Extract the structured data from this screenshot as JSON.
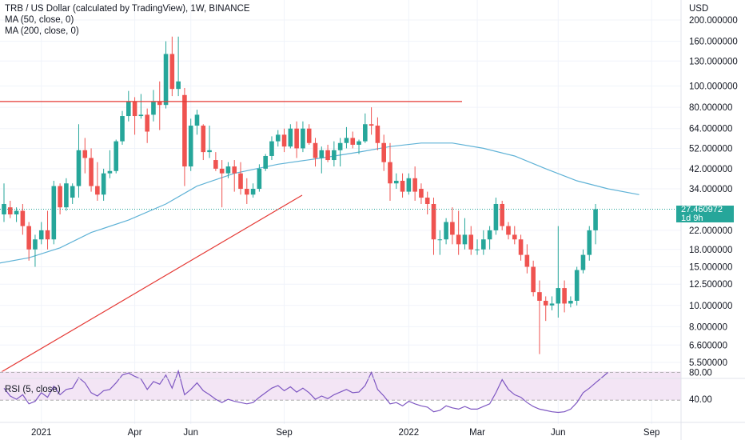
{
  "header": {
    "title": "TRB / US Dollar (calculated by TradingView), 1W, BINANCE",
    "ma50_label": "MA (50, close, 0)",
    "ma200_label": "MA (200, close, 0)",
    "rsi_label": "RSI (5, close)"
  },
  "badge": {
    "price": "27.460972",
    "countdown": "1d 9h"
  },
  "colors": {
    "up": "#26a69a",
    "down": "#ef5350",
    "ma50": "#5fb2d6",
    "trendline": "#e53935",
    "rsi_line": "#7e57c2",
    "rsi_band": "#f3e5f5"
  },
  "chart_data": {
    "type": "candlestick",
    "scale": "log",
    "currency_label": "USD",
    "price_ticks": [
      "200.000000",
      "160.000000",
      "130.000000",
      "100.000000",
      "80.000000",
      "64.000000",
      "52.000000",
      "42.000000",
      "34.000000",
      "22.000000",
      "18.000000",
      "15.000000",
      "12.500000",
      "10.000000",
      "8.000000",
      "6.600000",
      "5.500000"
    ],
    "rsi_ticks": [
      "80.00",
      "40.00"
    ],
    "time_ticks": [
      "2021",
      "Apr",
      "Jun",
      "Sep",
      "2022",
      "Mar",
      "Jun",
      "Sep"
    ],
    "last_price": 27.460972,
    "horizontal_level": 85,
    "candles": [
      {
        "o": 26,
        "h": 36,
        "l": 24,
        "c": 29
      },
      {
        "o": 28,
        "h": 30,
        "l": 25,
        "c": 26
      },
      {
        "o": 26,
        "h": 28,
        "l": 24,
        "c": 27
      },
      {
        "o": 27,
        "h": 29,
        "l": 21,
        "c": 23
      },
      {
        "o": 23,
        "h": 24,
        "l": 16,
        "c": 18
      },
      {
        "o": 18,
        "h": 21,
        "l": 15,
        "c": 20
      },
      {
        "o": 20,
        "h": 24,
        "l": 19,
        "c": 22
      },
      {
        "o": 22,
        "h": 27,
        "l": 18,
        "c": 20
      },
      {
        "o": 20,
        "h": 37,
        "l": 19,
        "c": 35
      },
      {
        "o": 35,
        "h": 36,
        "l": 26,
        "c": 28
      },
      {
        "o": 28,
        "h": 38,
        "l": 27,
        "c": 36
      },
      {
        "o": 31,
        "h": 36,
        "l": 29,
        "c": 35
      },
      {
        "o": 35,
        "h": 67,
        "l": 31,
        "c": 51
      },
      {
        "o": 51,
        "h": 58,
        "l": 40,
        "c": 47
      },
      {
        "o": 47,
        "h": 52,
        "l": 33,
        "c": 35
      },
      {
        "o": 35,
        "h": 45,
        "l": 30,
        "c": 32
      },
      {
        "o": 32,
        "h": 42,
        "l": 30,
        "c": 40
      },
      {
        "o": 40,
        "h": 51,
        "l": 38,
        "c": 41
      },
      {
        "o": 41,
        "h": 57,
        "l": 40,
        "c": 56
      },
      {
        "o": 56,
        "h": 77,
        "l": 54,
        "c": 73
      },
      {
        "o": 73,
        "h": 95,
        "l": 69,
        "c": 85
      },
      {
        "o": 85,
        "h": 89,
        "l": 60,
        "c": 73
      },
      {
        "o": 73,
        "h": 92,
        "l": 71,
        "c": 74
      },
      {
        "o": 74,
        "h": 79,
        "l": 55,
        "c": 62
      },
      {
        "o": 74,
        "h": 96,
        "l": 69,
        "c": 85
      },
      {
        "o": 85,
        "h": 105,
        "l": 63,
        "c": 82
      },
      {
        "o": 82,
        "h": 160,
        "l": 79,
        "c": 140
      },
      {
        "o": 140,
        "h": 168,
        "l": 90,
        "c": 97
      },
      {
        "o": 97,
        "h": 168,
        "l": 90,
        "c": 105
      },
      {
        "o": 91,
        "h": 98,
        "l": 35,
        "c": 43
      },
      {
        "o": 43,
        "h": 71,
        "l": 41,
        "c": 66
      },
      {
        "o": 66,
        "h": 78,
        "l": 60,
        "c": 74
      },
      {
        "o": 66,
        "h": 67,
        "l": 46,
        "c": 50
      },
      {
        "o": 50,
        "h": 66,
        "l": 47,
        "c": 51
      },
      {
        "o": 46,
        "h": 50,
        "l": 41,
        "c": 42
      },
      {
        "o": 42,
        "h": 46,
        "l": 28,
        "c": 40
      },
      {
        "o": 40,
        "h": 45,
        "l": 38,
        "c": 43
      },
      {
        "o": 43,
        "h": 46,
        "l": 33,
        "c": 40
      },
      {
        "o": 40,
        "h": 45,
        "l": 32,
        "c": 34
      },
      {
        "o": 34,
        "h": 38,
        "l": 29,
        "c": 32
      },
      {
        "o": 32,
        "h": 36,
        "l": 31,
        "c": 34
      },
      {
        "o": 34,
        "h": 44,
        "l": 33,
        "c": 42
      },
      {
        "o": 42,
        "h": 49,
        "l": 41,
        "c": 48
      },
      {
        "o": 48,
        "h": 59,
        "l": 46,
        "c": 56
      },
      {
        "o": 56,
        "h": 63,
        "l": 53,
        "c": 60
      },
      {
        "o": 60,
        "h": 64,
        "l": 50,
        "c": 53
      },
      {
        "o": 53,
        "h": 67,
        "l": 52,
        "c": 64
      },
      {
        "o": 64,
        "h": 69,
        "l": 47,
        "c": 52
      },
      {
        "o": 52,
        "h": 69,
        "l": 50,
        "c": 64
      },
      {
        "o": 64,
        "h": 67,
        "l": 54,
        "c": 55
      },
      {
        "o": 55,
        "h": 58,
        "l": 43,
        "c": 47
      },
      {
        "o": 47,
        "h": 53,
        "l": 40,
        "c": 51
      },
      {
        "o": 51,
        "h": 54,
        "l": 45,
        "c": 46
      },
      {
        "o": 46,
        "h": 56,
        "l": 43,
        "c": 51
      },
      {
        "o": 51,
        "h": 58,
        "l": 43,
        "c": 55
      },
      {
        "o": 55,
        "h": 65,
        "l": 52,
        "c": 58
      },
      {
        "o": 58,
        "h": 62,
        "l": 52,
        "c": 54
      },
      {
        "o": 54,
        "h": 57,
        "l": 49,
        "c": 56
      },
      {
        "o": 56,
        "h": 75,
        "l": 55,
        "c": 67
      },
      {
        "o": 67,
        "h": 80,
        "l": 60,
        "c": 66
      },
      {
        "o": 66,
        "h": 72,
        "l": 51,
        "c": 55
      },
      {
        "o": 55,
        "h": 60,
        "l": 41,
        "c": 45
      },
      {
        "o": 45,
        "h": 55,
        "l": 30,
        "c": 36
      },
      {
        "o": 36,
        "h": 40,
        "l": 34,
        "c": 37
      },
      {
        "o": 37,
        "h": 40,
        "l": 31,
        "c": 33
      },
      {
        "o": 33,
        "h": 40,
        "l": 32,
        "c": 38
      },
      {
        "o": 38,
        "h": 43,
        "l": 30,
        "c": 33
      },
      {
        "o": 34,
        "h": 36,
        "l": 29,
        "c": 31
      },
      {
        "o": 31,
        "h": 33,
        "l": 26,
        "c": 29
      },
      {
        "o": 29,
        "h": 31,
        "l": 17,
        "c": 20
      },
      {
        "o": 20,
        "h": 22,
        "l": 17,
        "c": 20
      },
      {
        "o": 20,
        "h": 25,
        "l": 19,
        "c": 24
      },
      {
        "o": 24,
        "h": 28,
        "l": 19,
        "c": 21
      },
      {
        "o": 21,
        "h": 27,
        "l": 17,
        "c": 19
      },
      {
        "o": 19,
        "h": 25,
        "l": 18,
        "c": 21
      },
      {
        "o": 21,
        "h": 23,
        "l": 17,
        "c": 18
      },
      {
        "o": 18,
        "h": 20,
        "l": 17,
        "c": 18
      },
      {
        "o": 18,
        "h": 22,
        "l": 17,
        "c": 20
      },
      {
        "o": 20,
        "h": 23,
        "l": 18,
        "c": 22
      },
      {
        "o": 22,
        "h": 31,
        "l": 21,
        "c": 29
      },
      {
        "o": 29,
        "h": 30,
        "l": 22,
        "c": 23
      },
      {
        "o": 23,
        "h": 24,
        "l": 20,
        "c": 21
      },
      {
        "o": 21,
        "h": 23,
        "l": 19,
        "c": 20
      },
      {
        "o": 20,
        "h": 21,
        "l": 16,
        "c": 17
      },
      {
        "o": 17,
        "h": 19,
        "l": 14,
        "c": 15
      },
      {
        "o": 15,
        "h": 16,
        "l": 11,
        "c": 11.5
      },
      {
        "o": 11.5,
        "h": 13,
        "l": 6.0,
        "c": 10.5
      },
      {
        "o": 10.5,
        "h": 11,
        "l": 8.5,
        "c": 10
      },
      {
        "o": 10,
        "h": 11,
        "l": 9.5,
        "c": 10.2
      },
      {
        "o": 10.2,
        "h": 23,
        "l": 8.8,
        "c": 12
      },
      {
        "o": 12,
        "h": 13,
        "l": 9.3,
        "c": 10.2
      },
      {
        "o": 10.2,
        "h": 11,
        "l": 9.8,
        "c": 10.5
      },
      {
        "o": 10.5,
        "h": 15,
        "l": 10,
        "c": 14.5
      },
      {
        "o": 14.5,
        "h": 18,
        "l": 14,
        "c": 17
      },
      {
        "o": 17,
        "h": 23,
        "l": 16,
        "c": 22
      },
      {
        "o": 22,
        "h": 29,
        "l": 19,
        "c": 27.46
      }
    ],
    "ma50": [
      {
        "i": -4,
        "v": 15.0
      },
      {
        "i": 4,
        "v": 16.5
      },
      {
        "i": 9,
        "v": 18.3
      },
      {
        "i": 14,
        "v": 21.5
      },
      {
        "i": 20,
        "v": 24.5
      },
      {
        "i": 26,
        "v": 29
      },
      {
        "i": 31,
        "v": 35
      },
      {
        "i": 37,
        "v": 40
      },
      {
        "i": 44,
        "v": 44
      },
      {
        "i": 51,
        "v": 47
      },
      {
        "i": 57,
        "v": 50
      },
      {
        "i": 62,
        "v": 53
      },
      {
        "i": 67,
        "v": 55
      },
      {
        "i": 72,
        "v": 55
      },
      {
        "i": 77,
        "v": 52
      },
      {
        "i": 82,
        "v": 48
      },
      {
        "i": 87,
        "v": 42
      },
      {
        "i": 92,
        "v": 37
      },
      {
        "i": 97,
        "v": 34
      },
      {
        "i": 102,
        "v": 32
      }
    ],
    "rsi": [
      62,
      50,
      45,
      52,
      38,
      42,
      55,
      48,
      65,
      52,
      60,
      62,
      78,
      70,
      55,
      50,
      58,
      60,
      70,
      82,
      85,
      80,
      76,
      60,
      72,
      68,
      82,
      62,
      88,
      52,
      60,
      70,
      58,
      52,
      45,
      40,
      45,
      42,
      40,
      38,
      40,
      48,
      55,
      62,
      66,
      58,
      64,
      56,
      62,
      55,
      45,
      50,
      46,
      52,
      56,
      60,
      55,
      56,
      66,
      86,
      60,
      50,
      38,
      40,
      35,
      42,
      38,
      35,
      33,
      26,
      28,
      35,
      32,
      30,
      34,
      30,
      30,
      34,
      38,
      55,
      75,
      60,
      52,
      48,
      40,
      34,
      30,
      28,
      26,
      25,
      26,
      30,
      40,
      55,
      62,
      70,
      78,
      86
    ]
  }
}
